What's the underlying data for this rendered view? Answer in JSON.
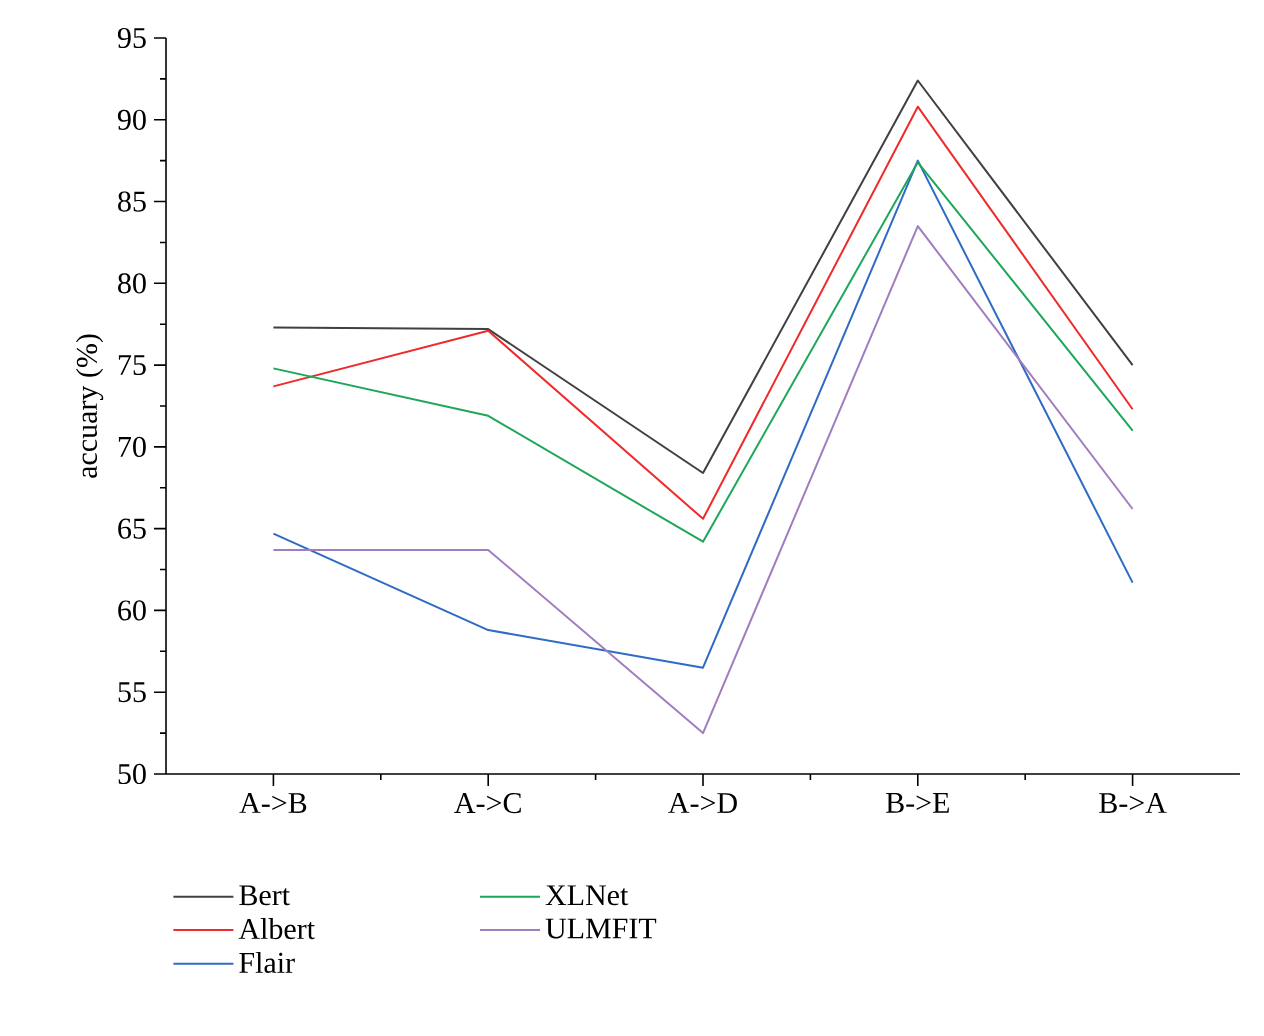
{
  "chart_data": {
    "type": "line",
    "ylabel": "accuary (%)",
    "categories": [
      "A->B",
      "A->C",
      "A->D",
      "B->E",
      "B->A"
    ],
    "series": [
      {
        "name": "Bert",
        "color": "#404040",
        "values": [
          77.3,
          77.2,
          68.4,
          92.4,
          75.0
        ]
      },
      {
        "name": "Albert",
        "color": "#ee2a2a",
        "values": [
          73.7,
          77.1,
          65.6,
          90.8,
          72.3
        ]
      },
      {
        "name": "Flair",
        "color": "#2f6bc4",
        "values": [
          64.7,
          58.8,
          56.5,
          87.5,
          61.7
        ]
      },
      {
        "name": "XLNet",
        "color": "#1ea65a",
        "values": [
          74.8,
          71.9,
          64.2,
          87.4,
          71.0
        ]
      },
      {
        "name": "ULMFIT",
        "color": "#a07cc0",
        "values": [
          63.7,
          63.7,
          52.5,
          83.5,
          66.2
        ]
      }
    ],
    "ylim": [
      50,
      95
    ],
    "yticks": [
      50,
      55,
      60,
      65,
      70,
      75,
      80,
      85,
      90,
      95
    ],
    "grid": false,
    "legend": "bottom",
    "marker": "none",
    "line_style": "solid"
  }
}
